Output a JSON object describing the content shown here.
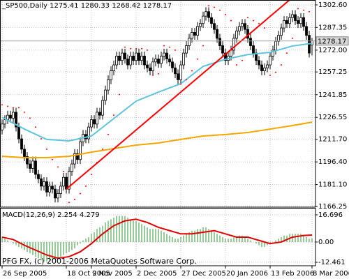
{
  "chart_data": [
    {
      "type": "candlestick",
      "title": "_SP500,Daily",
      "xlim": [
        -0.75,
        112.25
      ],
      "ylim": [
        1165.8,
        1305.9
      ],
      "yticks": [
        {
          "value": 1302.6,
          "label": "1302.60"
        },
        {
          "value": 1287.35,
          "label": "1287.35"
        },
        {
          "value": 1272,
          "label": "1272.00"
        },
        {
          "value": 1257.25,
          "label": "1257.25"
        },
        {
          "value": 1241.85,
          "label": "1241.85"
        },
        {
          "value": 1226.55,
          "label": "1226.55"
        },
        {
          "value": 1211.7,
          "label": "1211.70"
        },
        {
          "value": 1196.4,
          "label": "1196.40"
        },
        {
          "value": 1181.1,
          "label": "1181.10"
        },
        {
          "value": 1166.25,
          "label": "1166.25"
        }
      ],
      "grid": true,
      "up_color": "#ffffff",
      "down_color": "#000000",
      "candles": {
        "open": [
          1218,
          1222,
          1225,
          1228,
          1226,
          1230,
          1220,
          1212,
          1205,
          1200,
          1195,
          1192,
          1197,
          1188,
          1185,
          1180,
          1183,
          1176,
          1180,
          1178,
          1172,
          1175,
          1180,
          1186,
          1178,
          1190,
          1195,
          1202,
          1198,
          1210,
          1215,
          1212,
          1220,
          1225,
          1222,
          1230,
          1228,
          1238,
          1245,
          1252,
          1258,
          1262,
          1268,
          1265,
          1270,
          1266,
          1262,
          1268,
          1265,
          1270,
          1265,
          1268,
          1262,
          1260,
          1258,
          1264,
          1266,
          1263,
          1268,
          1270,
          1266,
          1264,
          1260,
          1256,
          1252,
          1262,
          1270,
          1275,
          1280,
          1284,
          1282,
          1288,
          1290,
          1295,
          1298,
          1294,
          1290,
          1286,
          1280,
          1275,
          1270,
          1265,
          1268,
          1272,
          1280,
          1285,
          1288,
          1290,
          1286,
          1280,
          1275,
          1270,
          1265,
          1262,
          1258,
          1260,
          1262,
          1268,
          1272,
          1278,
          1282,
          1287,
          1292,
          1290,
          1294,
          1296,
          1292,
          1290,
          1294,
          1288,
          1282,
          1275.41
        ],
        "high": [
          1225,
          1228,
          1231,
          1231,
          1233,
          1233,
          1223,
          1215,
          1208,
          1203,
          1198,
          1200,
          1200,
          1191,
          1188,
          1186,
          1186,
          1183,
          1183,
          1181,
          1178,
          1183,
          1189,
          1189,
          1193,
          1198,
          1205,
          1205,
          1213,
          1218,
          1218,
          1223,
          1228,
          1228,
          1233,
          1233,
          1241,
          1248,
          1255,
          1261,
          1265,
          1271,
          1271,
          1273,
          1273,
          1269,
          1271,
          1271,
          1273,
          1273,
          1271,
          1271,
          1265,
          1263,
          1267,
          1269,
          1269,
          1271,
          1273,
          1273,
          1269,
          1267,
          1263,
          1259,
          1265,
          1273,
          1278,
          1283,
          1287,
          1287,
          1291,
          1293,
          1298,
          1301,
          1301,
          1297,
          1293,
          1289,
          1283,
          1278,
          1273,
          1271,
          1275,
          1283,
          1288,
          1291,
          1293,
          1293,
          1289,
          1283,
          1278,
          1273,
          1268,
          1265,
          1263,
          1265,
          1271,
          1275,
          1281,
          1285,
          1290,
          1295,
          1295,
          1297,
          1299,
          1299,
          1295,
          1297,
          1297,
          1291,
          1285,
          1280.33
        ],
        "low": [
          1215,
          1219,
          1222,
          1223,
          1223,
          1217,
          1209,
          1202,
          1197,
          1192,
          1189,
          1189,
          1185,
          1182,
          1177,
          1177,
          1173,
          1173,
          1175,
          1169,
          1169,
          1172,
          1177,
          1175,
          1175,
          1187,
          1192,
          1195,
          1195,
          1207,
          1209,
          1209,
          1217,
          1219,
          1219,
          1225,
          1225,
          1235,
          1242,
          1249,
          1255,
          1259,
          1262,
          1262,
          1263,
          1259,
          1259,
          1262,
          1262,
          1262,
          1262,
          1259,
          1257,
          1255,
          1255,
          1261,
          1260,
          1260,
          1265,
          1263,
          1261,
          1257,
          1253,
          1249,
          1249,
          1259,
          1267,
          1272,
          1277,
          1279,
          1279,
          1285,
          1287,
          1292,
          1291,
          1287,
          1283,
          1277,
          1272,
          1267,
          1262,
          1262,
          1265,
          1269,
          1277,
          1282,
          1285,
          1283,
          1277,
          1272,
          1267,
          1262,
          1259,
          1255,
          1255,
          1257,
          1259,
          1265,
          1269,
          1275,
          1279,
          1284,
          1287,
          1287,
          1291,
          1289,
          1287,
          1287,
          1285,
          1279,
          1267,
          1268.42
        ],
        "close": [
          1222,
          1225,
          1228,
          1226,
          1230,
          1220,
          1212,
          1205,
          1200,
          1195,
          1192,
          1197,
          1188,
          1185,
          1180,
          1183,
          1176,
          1180,
          1178,
          1172,
          1175,
          1180,
          1186,
          1178,
          1190,
          1195,
          1202,
          1198,
          1210,
          1215,
          1212,
          1220,
          1225,
          1222,
          1230,
          1228,
          1238,
          1245,
          1252,
          1258,
          1262,
          1268,
          1265,
          1270,
          1266,
          1262,
          1268,
          1265,
          1270,
          1265,
          1268,
          1262,
          1260,
          1258,
          1264,
          1266,
          1263,
          1268,
          1270,
          1266,
          1264,
          1260,
          1256,
          1252,
          1262,
          1270,
          1275,
          1280,
          1284,
          1282,
          1288,
          1290,
          1295,
          1298,
          1294,
          1290,
          1286,
          1280,
          1275,
          1270,
          1265,
          1268,
          1272,
          1280,
          1285,
          1288,
          1290,
          1286,
          1280,
          1275,
          1270,
          1265,
          1262,
          1258,
          1260,
          1262,
          1268,
          1272,
          1278,
          1282,
          1287,
          1292,
          1290,
          1294,
          1296,
          1292,
          1290,
          1294,
          1288,
          1282,
          1270,
          1278.17
        ]
      },
      "series": [
        {
          "type": "line",
          "color": "#5cc4dc",
          "x": [
            0,
            8,
            16,
            24,
            32,
            40,
            48,
            56,
            64,
            72,
            80,
            88,
            96,
            104,
            111
          ],
          "values": [
            1226.6,
            1218.6,
            1211.6,
            1210.6,
            1213.9,
            1225.7,
            1237.5,
            1243.6,
            1249.3,
            1261,
            1265.8,
            1269,
            1270.5,
            1274.8,
            1276.6
          ]
        },
        {
          "type": "line",
          "color": "#f5a500",
          "x": [
            0,
            8,
            16,
            24,
            32,
            40,
            48,
            56,
            64,
            72,
            80,
            88,
            96,
            104,
            111
          ],
          "values": [
            1200.2,
            1199.3,
            1199.3,
            1200.2,
            1203,
            1205.4,
            1207.8,
            1209.2,
            1211.6,
            1213.9,
            1214.9,
            1216.3,
            1218.6,
            1221,
            1223.3
          ]
        },
        {
          "type": "dots",
          "color": "#ff0000",
          "x": [
            0,
            2,
            4,
            6,
            8,
            10,
            12,
            14,
            16,
            18,
            20,
            22,
            24,
            26,
            28,
            30,
            32,
            34,
            36,
            38,
            40,
            42,
            44,
            46,
            48,
            50,
            52,
            54,
            56,
            58,
            60,
            62,
            64,
            66,
            68,
            70,
            72,
            74,
            76,
            78,
            80,
            82,
            84,
            86,
            88,
            90,
            92,
            94,
            96,
            98,
            100,
            102,
            104,
            106,
            108,
            110
          ],
          "values": [
            1235,
            1234,
            1233,
            1233,
            1230,
            1226,
            1220,
            1212,
            1205,
            1198,
            1193,
            1190,
            1169,
            1171,
            1175,
            1180,
            1188,
            1196,
            1205,
            1215,
            1228,
            1242,
            1274,
            1273,
            1273,
            1273,
            1272,
            1255,
            1256,
            1275,
            1274,
            1272,
            1249,
            1252,
            1258,
            1266,
            1275,
            1302,
            1301,
            1299,
            1296,
            1292,
            1262,
            1265,
            1294,
            1292,
            1290,
            1287,
            1255,
            1257,
            1262,
            1270,
            1280,
            1300,
            1299,
            1298
          ]
        }
      ],
      "trendline": {
        "color": "#ff0000",
        "ray": true,
        "x": [
          23,
          100
        ],
        "values": [
          1178,
          1301.2
        ]
      }
    },
    {
      "type": "macd",
      "title": "MACD(12,26,9)",
      "xlim": [
        -0.75,
        112.25
      ],
      "ylim": [
        -14.6,
        20.56
      ],
      "yticks": [
        16.696,
        {
          "value": 0,
          "label": "0.00"
        },
        -12.461
      ],
      "xticks": [
        {
          "value": 0,
          "label": "26 Sep 2005"
        },
        {
          "value": 23,
          "label": "18 Oct 2005"
        },
        {
          "value": 32,
          "label": "9 Nov 2005"
        },
        {
          "value": 48,
          "label": "2 Dec 2005"
        },
        {
          "value": 64,
          "label": "27 Dec 2005"
        },
        {
          "value": 80,
          "label": "20 Jan 2006"
        },
        {
          "value": 96,
          "label": "13 Feb 2006"
        },
        {
          "value": 111,
          "label": "8 Mar 2006"
        }
      ],
      "grid": true,
      "histogram": {
        "color": "#2e9a2e",
        "values": [
          3,
          2,
          1,
          0,
          -1,
          -2,
          -3,
          -4,
          -5,
          -6,
          -7,
          -8,
          -9,
          -10,
          -11,
          -12,
          -12,
          -12,
          -12,
          -11,
          -10,
          -9,
          -8,
          -7,
          -6,
          -5,
          -4,
          -2,
          -1,
          1,
          2,
          3,
          5,
          6,
          8,
          9,
          10,
          12,
          13,
          14,
          15,
          16,
          16,
          16,
          16,
          15,
          14,
          13,
          13,
          12,
          11,
          10,
          9,
          8,
          8,
          8,
          8,
          7,
          6,
          5,
          4,
          3,
          2,
          2,
          3,
          4,
          5,
          6,
          7,
          7,
          8,
          8,
          9,
          9,
          8,
          7,
          6,
          5,
          4,
          3,
          2,
          2,
          2,
          3,
          3,
          4,
          4,
          3,
          2,
          1,
          0,
          -1,
          -2,
          -3,
          -3,
          -2,
          -1,
          0,
          1,
          2,
          3,
          4,
          4,
          5,
          5,
          5,
          5,
          5,
          4,
          3,
          2,
          2.254
        ]
      },
      "signal": {
        "color": "#e00000",
        "x": [
          0,
          4,
          8,
          12,
          16,
          20,
          24,
          28,
          32,
          36,
          40,
          44,
          48,
          52,
          56,
          60,
          64,
          68,
          72,
          76,
          80,
          84,
          88,
          92,
          96,
          100,
          104,
          108,
          111
        ],
        "values": [
          3,
          1.5,
          -2,
          -5,
          -8,
          -10,
          -9,
          -6,
          -1,
          5,
          10,
          13,
          14,
          12,
          9,
          7,
          5,
          5,
          6,
          7,
          5,
          3,
          3,
          1,
          -1,
          0,
          3,
          4,
          4.279
        ]
      }
    }
  ],
  "footer": "PFG FX, (c) 2001-2006 MetaQuotes Software Corp."
}
